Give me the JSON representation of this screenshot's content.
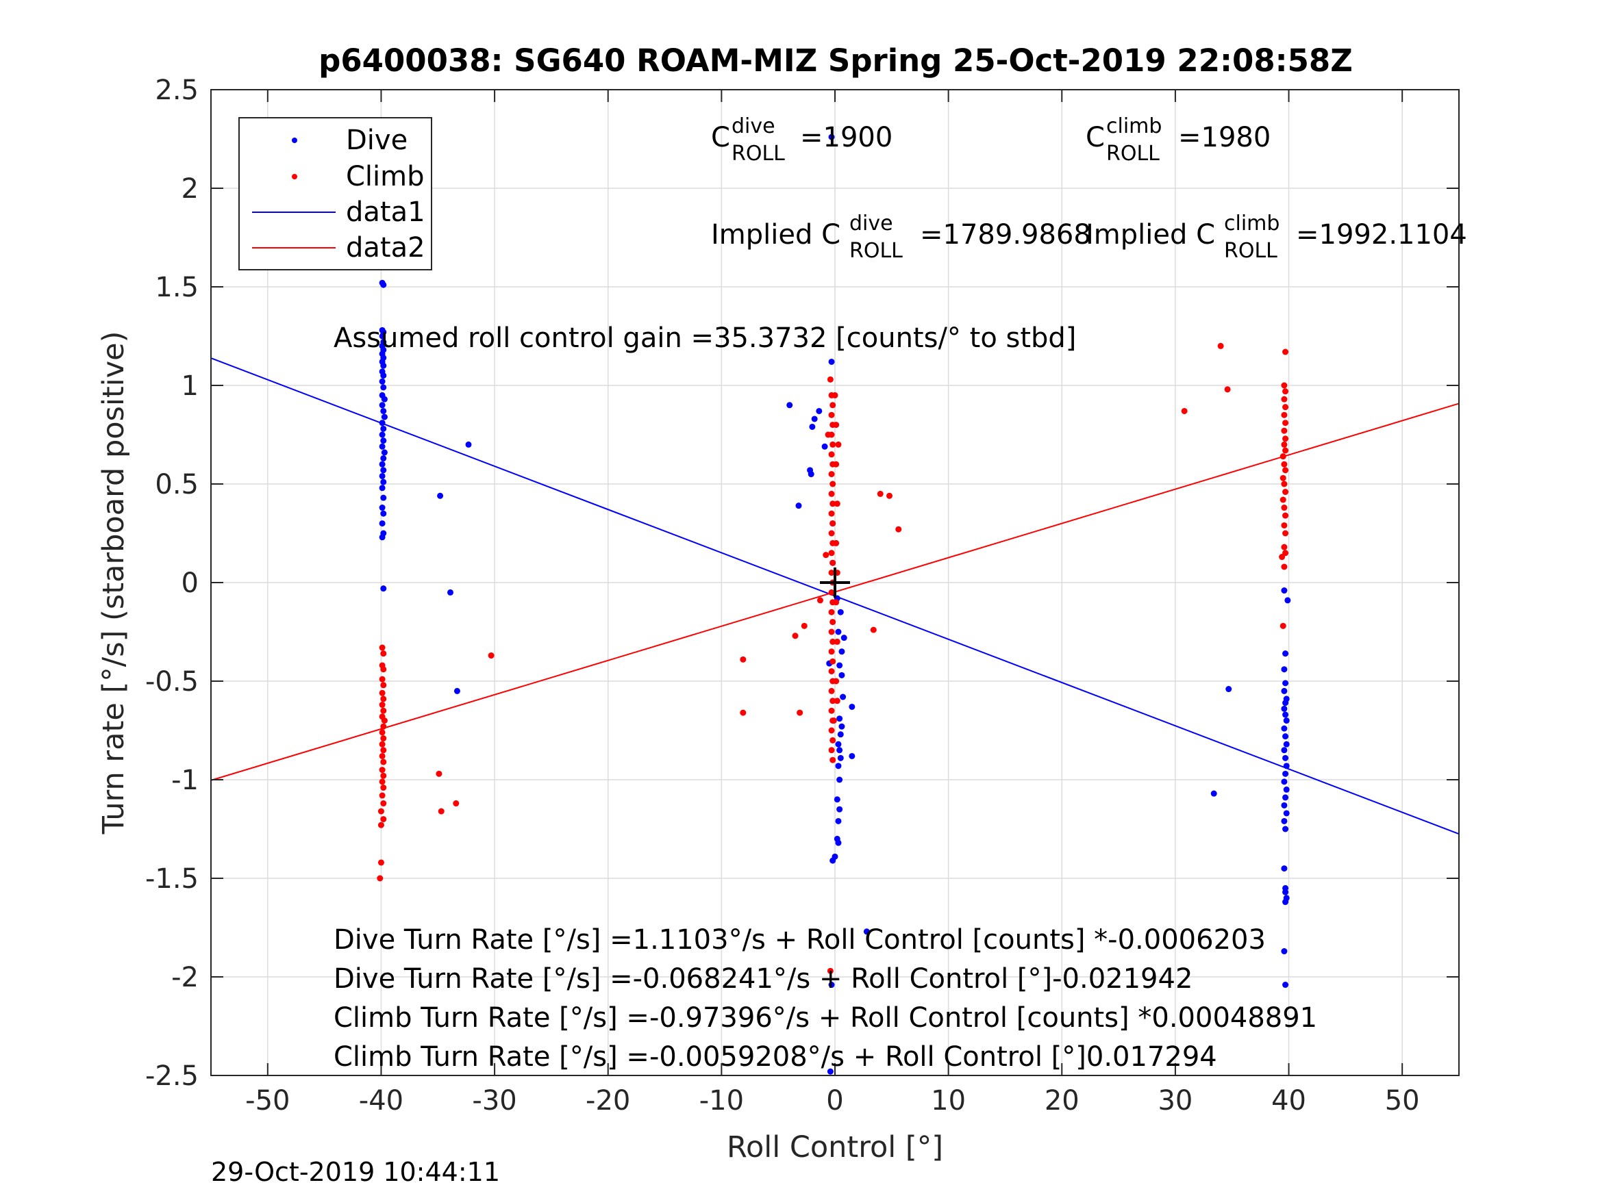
{
  "chart_data": {
    "type": "scatter",
    "title": "p6400038: SG640 ROAM-MIZ Spring 25-Oct-2019 22:08:58Z",
    "xlabel": "Roll Control [°]",
    "ylabel": "Turn rate [°/s] (starboard positive)",
    "xlim": [
      -55,
      55
    ],
    "ylim": [
      -2.5,
      2.5
    ],
    "grid": true,
    "legend_position": "top-left",
    "xticks": [
      "-50",
      "-40",
      "-30",
      "-20",
      "-10",
      "0",
      "10",
      "20",
      "30",
      "40",
      "50"
    ],
    "yticks": [
      "2.5",
      "2",
      "1.5",
      "1",
      "0.5",
      "0",
      "-0.5",
      "-1",
      "-1.5",
      "-2",
      "-2.5"
    ],
    "colors": {
      "dive": "#0000ff",
      "climb": "#ff0000",
      "marker": "#000000"
    },
    "series": [
      {
        "name": "Dive",
        "kind": "points",
        "points": [
          [
            -39.9,
            1.74
          ],
          [
            -39.9,
            1.71
          ],
          [
            -39.8,
            1.69
          ],
          [
            -39.9,
            1.52
          ],
          [
            -39.8,
            1.51
          ],
          [
            -39.9,
            1.28
          ],
          [
            -39.8,
            1.27
          ],
          [
            -39.9,
            1.25
          ],
          [
            -39.8,
            1.22
          ],
          [
            -39.9,
            1.2
          ],
          [
            -39.8,
            1.18
          ],
          [
            -39.9,
            1.16
          ],
          [
            -39.8,
            1.14
          ],
          [
            -39.9,
            1.12
          ],
          [
            -39.8,
            1.1
          ],
          [
            -39.9,
            1.07
          ],
          [
            -39.8,
            1.05
          ],
          [
            -39.9,
            1.02
          ],
          [
            -39.8,
            0.99
          ],
          [
            -39.9,
            0.95
          ],
          [
            -39.7,
            0.93
          ],
          [
            -39.9,
            0.9
          ],
          [
            -39.8,
            0.87
          ],
          [
            -39.7,
            0.84
          ],
          [
            -39.9,
            0.81
          ],
          [
            -39.8,
            0.78
          ],
          [
            -39.9,
            0.75
          ],
          [
            -39.8,
            0.72
          ],
          [
            -39.9,
            0.69
          ],
          [
            -39.7,
            0.66
          ],
          [
            -39.8,
            0.63
          ],
          [
            -39.9,
            0.6
          ],
          [
            -39.8,
            0.57
          ],
          [
            -39.9,
            0.54
          ],
          [
            -39.8,
            0.51
          ],
          [
            -39.9,
            0.48
          ],
          [
            -39.8,
            0.43
          ],
          [
            -39.9,
            0.38
          ],
          [
            -39.8,
            0.35
          ],
          [
            -39.9,
            0.3
          ],
          [
            -39.8,
            0.25
          ],
          [
            -39.9,
            0.23
          ],
          [
            -39.8,
            -0.03
          ],
          [
            -32.3,
            0.7
          ],
          [
            -34.8,
            0.44
          ],
          [
            -33.9,
            -0.05
          ],
          [
            -33.3,
            -0.55
          ],
          [
            -4.0,
            0.9
          ],
          [
            -1.8,
            0.83
          ],
          [
            -1.4,
            0.87
          ],
          [
            -2.0,
            0.79
          ],
          [
            -3.2,
            0.39
          ],
          [
            -2.2,
            0.57
          ],
          [
            -2.1,
            0.55
          ],
          [
            -0.9,
            0.69
          ],
          [
            -0.3,
            1.12
          ],
          [
            -0.2,
            0.3
          ],
          [
            -0.2,
            0.1
          ],
          [
            0.2,
            -0.08
          ],
          [
            0.5,
            -0.15
          ],
          [
            0.3,
            -0.25
          ],
          [
            0.8,
            -0.28
          ],
          [
            0.6,
            -0.35
          ],
          [
            0.4,
            -0.42
          ],
          [
            0.6,
            -0.47
          ],
          [
            0.7,
            -0.58
          ],
          [
            0.4,
            -0.69
          ],
          [
            0.6,
            -0.73
          ],
          [
            0.5,
            -0.77
          ],
          [
            0.3,
            -0.82
          ],
          [
            0.4,
            -0.85
          ],
          [
            0.5,
            -0.89
          ],
          [
            0.3,
            -0.93
          ],
          [
            0.4,
            -1.0
          ],
          [
            0.2,
            -1.1
          ],
          [
            0.4,
            -1.15
          ],
          [
            0.3,
            -1.21
          ],
          [
            0.2,
            -1.3
          ],
          [
            0.3,
            -1.32
          ],
          [
            0.0,
            -1.39
          ],
          [
            -0.2,
            -1.41
          ],
          [
            -0.5,
            -0.41
          ],
          [
            1.5,
            -0.63
          ],
          [
            1.5,
            -0.88
          ],
          [
            2.8,
            -1.77
          ],
          [
            -0.3,
            -2.04
          ],
          [
            -0.4,
            -2.48
          ],
          [
            -0.3,
            2.26
          ],
          [
            39.6,
            -0.04
          ],
          [
            39.9,
            -0.09
          ],
          [
            39.7,
            -0.36
          ],
          [
            39.6,
            -0.44
          ],
          [
            39.7,
            -0.51
          ],
          [
            39.6,
            -0.55
          ],
          [
            39.8,
            -0.59
          ],
          [
            39.7,
            -0.61
          ],
          [
            39.6,
            -0.64
          ],
          [
            39.7,
            -0.67
          ],
          [
            39.8,
            -0.7
          ],
          [
            39.6,
            -0.74
          ],
          [
            39.7,
            -0.78
          ],
          [
            39.8,
            -0.82
          ],
          [
            39.6,
            -0.85
          ],
          [
            39.7,
            -0.89
          ],
          [
            39.8,
            -0.93
          ],
          [
            39.7,
            -0.97
          ],
          [
            39.6,
            -1.01
          ],
          [
            39.8,
            -1.05
          ],
          [
            39.7,
            -1.09
          ],
          [
            39.6,
            -1.13
          ],
          [
            39.8,
            -1.17
          ],
          [
            39.6,
            -1.21
          ],
          [
            39.7,
            -1.25
          ],
          [
            39.6,
            -1.45
          ],
          [
            39.7,
            -1.55
          ],
          [
            39.7,
            -1.57
          ],
          [
            39.8,
            -1.6
          ],
          [
            39.7,
            -1.62
          ],
          [
            39.6,
            -1.87
          ],
          [
            39.7,
            -2.04
          ],
          [
            34.7,
            -0.54
          ],
          [
            33.4,
            -1.07
          ]
        ]
      },
      {
        "name": "Climb",
        "kind": "points",
        "points": [
          [
            -39.9,
            -0.33
          ],
          [
            -39.8,
            -0.36
          ],
          [
            -39.9,
            -0.42
          ],
          [
            -39.8,
            -0.44
          ],
          [
            -39.9,
            -0.49
          ],
          [
            -39.8,
            -0.52
          ],
          [
            -39.9,
            -0.56
          ],
          [
            -39.8,
            -0.59
          ],
          [
            -39.9,
            -0.62
          ],
          [
            -39.8,
            -0.65
          ],
          [
            -39.9,
            -0.68
          ],
          [
            -39.7,
            -0.7
          ],
          [
            -39.8,
            -0.73
          ],
          [
            -39.9,
            -0.76
          ],
          [
            -39.8,
            -0.79
          ],
          [
            -39.9,
            -0.82
          ],
          [
            -39.8,
            -0.85
          ],
          [
            -39.9,
            -0.88
          ],
          [
            -39.8,
            -0.91
          ],
          [
            -39.9,
            -0.95
          ],
          [
            -39.8,
            -0.98
          ],
          [
            -39.9,
            -1.01
          ],
          [
            -39.8,
            -1.04
          ],
          [
            -39.9,
            -1.08
          ],
          [
            -39.8,
            -1.12
          ],
          [
            -40.0,
            -1.16
          ],
          [
            -39.8,
            -1.2
          ],
          [
            -40.0,
            -1.23
          ],
          [
            -40.0,
            -1.42
          ],
          [
            -40.1,
            -1.5
          ],
          [
            -30.3,
            -0.37
          ],
          [
            -34.9,
            -0.97
          ],
          [
            -34.7,
            -1.16
          ],
          [
            -33.4,
            -1.12
          ],
          [
            -0.4,
            1.03
          ],
          [
            -0.3,
            0.95
          ],
          [
            -0.2,
            0.9
          ],
          [
            -0.3,
            0.85
          ],
          [
            -0.2,
            0.8
          ],
          [
            -0.3,
            0.75
          ],
          [
            -0.2,
            0.7
          ],
          [
            -0.3,
            0.65
          ],
          [
            -0.2,
            0.6
          ],
          [
            -0.3,
            0.55
          ],
          [
            -0.2,
            0.5
          ],
          [
            -0.3,
            0.45
          ],
          [
            -0.2,
            0.4
          ],
          [
            -0.3,
            0.35
          ],
          [
            -0.2,
            0.3
          ],
          [
            -0.3,
            0.25
          ],
          [
            -0.2,
            0.2
          ],
          [
            -0.3,
            0.15
          ],
          [
            -0.2,
            0.1
          ],
          [
            -0.3,
            0.05
          ],
          [
            -0.2,
            0.0
          ],
          [
            -0.3,
            -0.05
          ],
          [
            -0.2,
            -0.1
          ],
          [
            -0.3,
            -0.15
          ],
          [
            -0.2,
            -0.2
          ],
          [
            -0.3,
            -0.25
          ],
          [
            -0.2,
            -0.3
          ],
          [
            -0.3,
            -0.35
          ],
          [
            -0.2,
            -0.4
          ],
          [
            -0.3,
            -0.45
          ],
          [
            -0.2,
            -0.5
          ],
          [
            -0.3,
            -0.55
          ],
          [
            -0.2,
            -0.6
          ],
          [
            -0.3,
            -0.65
          ],
          [
            -0.2,
            -0.7
          ],
          [
            -0.3,
            -0.75
          ],
          [
            -0.2,
            -0.8
          ],
          [
            -0.3,
            -0.85
          ],
          [
            -0.2,
            -0.9
          ],
          [
            0.1,
            0.8
          ],
          [
            0.1,
            0.6
          ],
          [
            0.2,
            0.4
          ],
          [
            0.1,
            0.2
          ],
          [
            0.2,
            0.05
          ],
          [
            0.1,
            -0.1
          ],
          [
            0.2,
            -0.3
          ],
          [
            0.1,
            -0.5
          ],
          [
            0.2,
            -0.6
          ],
          [
            -0.1,
            -0.7
          ],
          [
            0.0,
            0.95
          ],
          [
            0.3,
            0.7
          ],
          [
            -0.4,
            -1.97
          ],
          [
            4.0,
            0.45
          ],
          [
            4.8,
            0.44
          ],
          [
            5.6,
            0.27
          ],
          [
            3.4,
            -0.24
          ],
          [
            -8.1,
            -0.39
          ],
          [
            -8.1,
            -0.66
          ],
          [
            -3.5,
            -0.27
          ],
          [
            -2.7,
            -0.22
          ],
          [
            -3.1,
            -0.66
          ],
          [
            -0.6,
            0.75
          ],
          [
            -0.8,
            0.14
          ],
          [
            -1.3,
            -0.09
          ],
          [
            39.7,
            1.17
          ],
          [
            39.6,
            1.0
          ],
          [
            39.7,
            0.97
          ],
          [
            39.6,
            0.93
          ],
          [
            39.7,
            0.89
          ],
          [
            39.6,
            0.85
          ],
          [
            39.7,
            0.81
          ],
          [
            39.6,
            0.77
          ],
          [
            39.7,
            0.73
          ],
          [
            39.6,
            0.7
          ],
          [
            39.7,
            0.67
          ],
          [
            39.5,
            0.64
          ],
          [
            39.6,
            0.6
          ],
          [
            39.7,
            0.57
          ],
          [
            39.5,
            0.53
          ],
          [
            39.6,
            0.5
          ],
          [
            39.7,
            0.46
          ],
          [
            39.5,
            0.42
          ],
          [
            39.6,
            0.38
          ],
          [
            39.7,
            0.34
          ],
          [
            39.6,
            0.29
          ],
          [
            39.7,
            0.25
          ],
          [
            39.6,
            0.18
          ],
          [
            39.7,
            0.15
          ],
          [
            39.4,
            0.13
          ],
          [
            39.6,
            0.08
          ],
          [
            39.5,
            -0.22
          ],
          [
            34.0,
            1.2
          ],
          [
            34.6,
            0.98
          ],
          [
            30.8,
            0.87
          ]
        ]
      },
      {
        "name": "data1",
        "kind": "line",
        "x": [
          -55,
          55
        ],
        "y": [
          1.1386,
          -1.275
        ]
      },
      {
        "name": "data2",
        "kind": "line",
        "x": [
          -55,
          55
        ],
        "y": [
          -1.0031,
          0.9081
        ]
      }
    ],
    "center_marker": [
      0,
      0
    ]
  },
  "annotations": {
    "c_roll_dive": {
      "base": "C",
      "sup": "dive",
      "sub": "ROLL",
      "value": "=1900"
    },
    "c_roll_climb": {
      "base": "C",
      "sup": "climb",
      "sub": "ROLL",
      "value": "=1980"
    },
    "implied_dive": {
      "base": "Implied C",
      "sup": "dive",
      "sub": "ROLL",
      "value": "=1789.9868"
    },
    "implied_climb": {
      "base": "Implied C",
      "sup": "climb",
      "sub": "ROLL",
      "value": "=1992.1104"
    },
    "gain": "Assumed roll control gain =35.3732 [counts/° to stbd]",
    "eq1": "Dive Turn Rate [°/s] =1.1103°/s + Roll Control [counts] *-0.0006203",
    "eq2": "Dive Turn Rate [°/s] =-0.068241°/s + Roll Control [°]-0.021942",
    "eq3": "Climb Turn Rate [°/s] =-0.97396°/s + Roll Control [counts] *0.00048891",
    "eq4": "Climb Turn Rate [°/s] =-0.0059208°/s + Roll Control [°]0.017294"
  },
  "legend": {
    "items": [
      {
        "label": "Dive",
        "kind": "point",
        "color": "#0000ff"
      },
      {
        "label": "Climb",
        "kind": "point",
        "color": "#ff0000"
      },
      {
        "label": "data1",
        "kind": "line",
        "color": "#0000ff"
      },
      {
        "label": "data2",
        "kind": "line",
        "color": "#ff0000"
      }
    ]
  },
  "footer_timestamp": "29-Oct-2019 10:44:11"
}
